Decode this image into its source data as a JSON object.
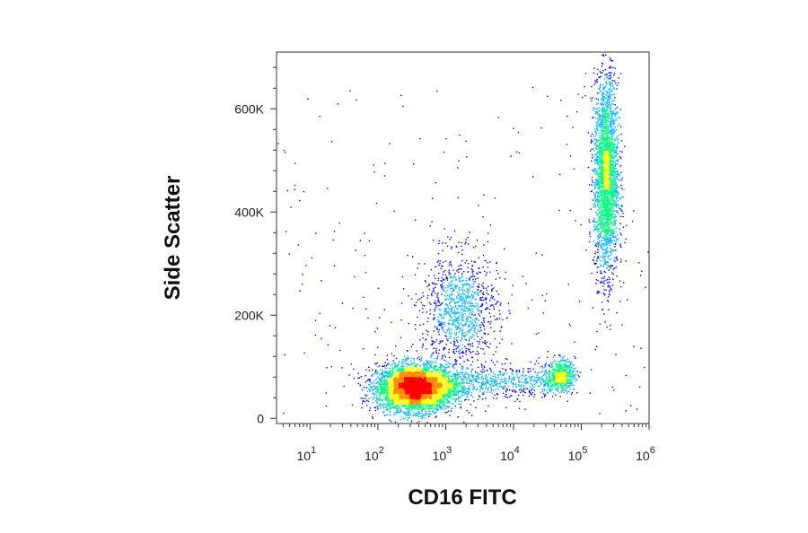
{
  "chart_data": {
    "type": "scatter",
    "subtype": "flow-cytometry-density-dot-plot",
    "title": "",
    "xlabel": "CD16 FITC",
    "ylabel": "Side Scatter",
    "x_scale": "log",
    "y_scale": "linear",
    "xlim": [
      3.2,
      1000000
    ],
    "ylim": [
      -10000,
      710000
    ],
    "grid": false,
    "legend": "none",
    "x_ticks": [
      {
        "value": 10,
        "base": "10",
        "exp": "1"
      },
      {
        "value": 100,
        "base": "10",
        "exp": "2"
      },
      {
        "value": 1000,
        "base": "10",
        "exp": "3"
      },
      {
        "value": 10000,
        "base": "10",
        "exp": "4"
      },
      {
        "value": 100000,
        "base": "10",
        "exp": "5"
      },
      {
        "value": 1000000,
        "base": "10",
        "exp": "6"
      }
    ],
    "y_ticks": [
      {
        "value": 0,
        "label": "0"
      },
      {
        "value": 200000,
        "label": "200K"
      },
      {
        "value": 400000,
        "label": "400K"
      },
      {
        "value": 600000,
        "label": "600K"
      }
    ],
    "populations": [
      {
        "x_center": 350,
        "y_center": 60000,
        "x_spread_decades": 0.28,
        "y_spread": 22000,
        "relative_count": 1.0
      },
      {
        "x_center": 1600,
        "y_center": 210000,
        "x_spread_decades": 0.28,
        "y_spread": 55000,
        "relative_count": 0.22
      },
      {
        "x_center": 50000,
        "y_center": 85000,
        "x_spread_decades": 0.1,
        "y_spread": 15000,
        "relative_count": 0.12
      },
      {
        "x_center": 230000,
        "y_center": 470000,
        "x_spread_decades": 0.09,
        "y_spread": 95000,
        "relative_count": 0.55
      }
    ],
    "colormap": [
      "#0000ff",
      "#00b4ff",
      "#00ff7f",
      "#ffff00",
      "#ff8c00",
      "#ff0000"
    ]
  }
}
